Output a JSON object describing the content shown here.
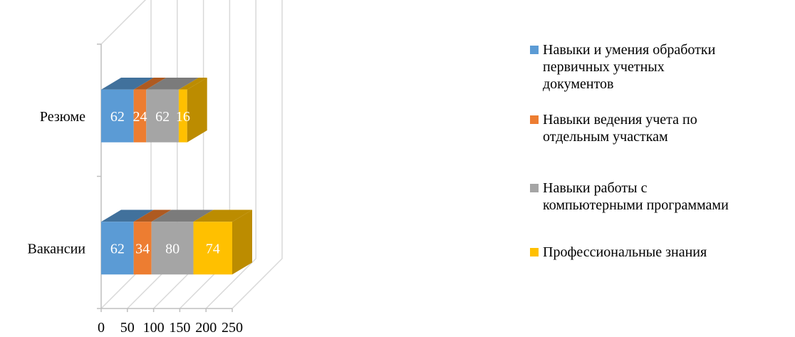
{
  "chart_data": {
    "type": "bar",
    "orientation": "horizontal",
    "stacked": true,
    "three_d": true,
    "categories": [
      "Резюме",
      "Вакансии"
    ],
    "series": [
      {
        "name": "Навыки и умения обработки\nпервичных учетных\nдокументов",
        "values": [
          62,
          62
        ],
        "color": "#5b9bd5",
        "top_color": "#41719c",
        "side_color": "#41719c"
      },
      {
        "name": "Навыки ведения учета по\nотдельным участкам",
        "values": [
          24,
          34
        ],
        "color": "#ed7d31",
        "top_color": "#ae5a21",
        "side_color": "#ae5a21"
      },
      {
        "name": "Навыки работы с\nкомпьютерными программами",
        "values": [
          62,
          80
        ],
        "color": "#a5a5a5",
        "top_color": "#7b7b7b",
        "side_color": "#7b7b7b"
      },
      {
        "name": "Профессиональные знания",
        "values": [
          16,
          74
        ],
        "color": "#ffc000",
        "top_color": "#bc8c00",
        "side_color": "#bc8c00"
      }
    ],
    "x_ticks": [
      "0",
      "50",
      "100",
      "150",
      "200",
      "250"
    ],
    "xlim": [
      0,
      250
    ],
    "grid": true,
    "legend": "right",
    "title": "",
    "xlabel": "",
    "ylabel": ""
  }
}
